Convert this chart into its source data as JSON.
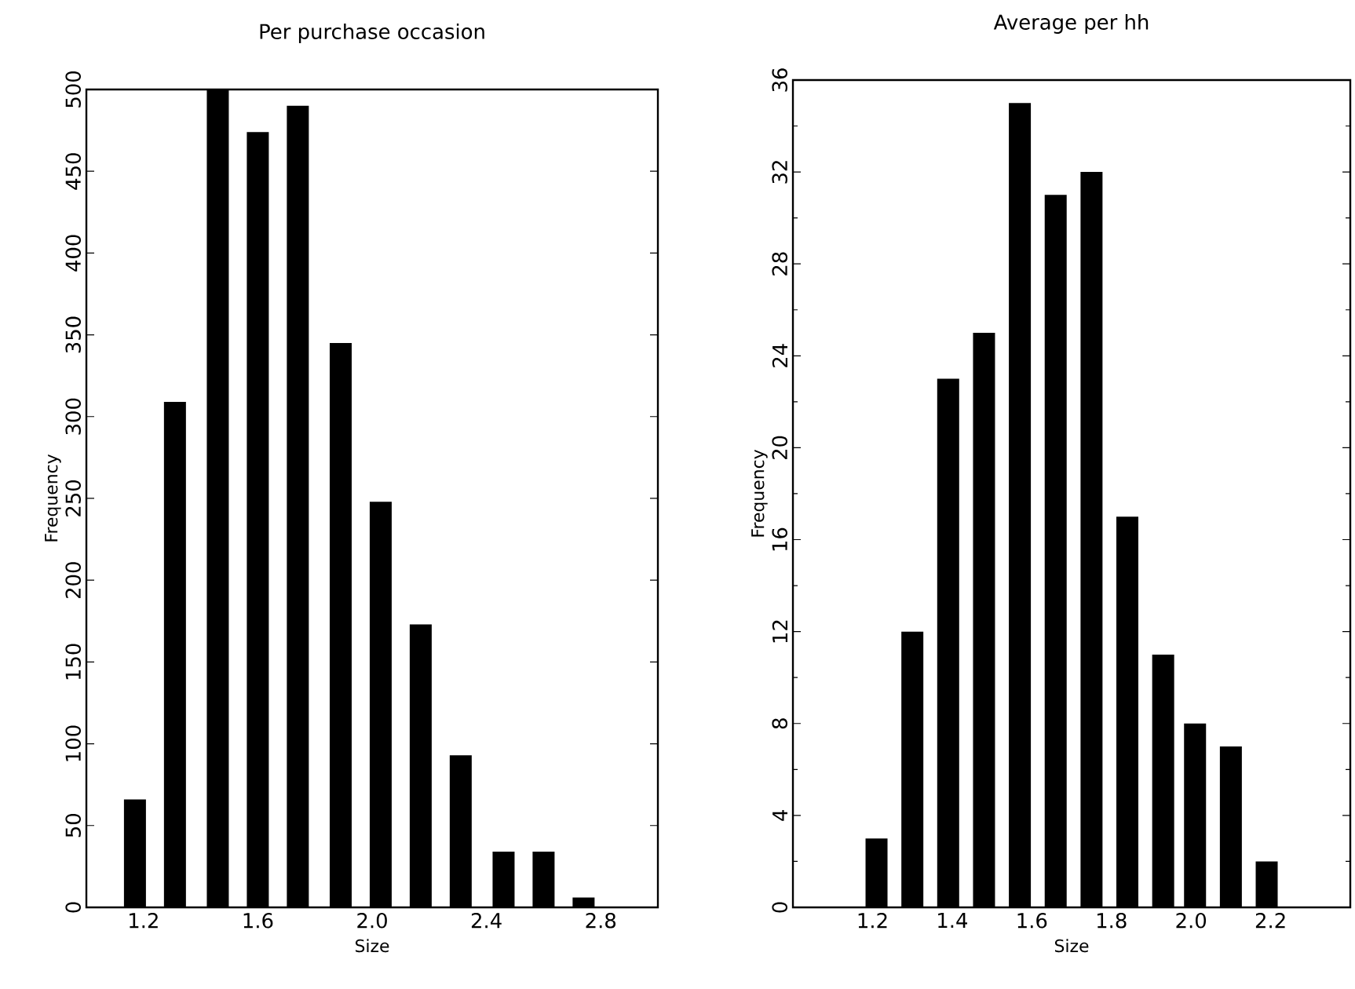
{
  "chart_data": [
    {
      "type": "bar",
      "title": "Per purchase occasion",
      "xlabel": "Size",
      "ylabel": "Frequency",
      "color": "#000000",
      "x": [
        1.17,
        1.31,
        1.46,
        1.6,
        1.74,
        1.89,
        2.03,
        2.17,
        2.31,
        2.46,
        2.6,
        2.74
      ],
      "values": [
        66,
        309,
        500,
        474,
        490,
        345,
        248,
        173,
        93,
        34,
        34,
        6
      ],
      "xlim": [
        1.0,
        3.0
      ],
      "xticks": [
        {
          "value": 1.2,
          "label": "1.2"
        },
        {
          "value": 1.6,
          "label": "1.6"
        },
        {
          "value": 2.0,
          "label": "2.0"
        },
        {
          "value": 2.4,
          "label": "2.4"
        },
        {
          "value": 2.8,
          "label": "2.8"
        }
      ],
      "ylim": [
        0,
        500
      ],
      "yticks": [
        0,
        50,
        100,
        150,
        200,
        250,
        300,
        350,
        400,
        450,
        500
      ],
      "grid": false
    },
    {
      "type": "bar",
      "title": "Average per hh",
      "xlabel": "Size",
      "ylabel": "Frequency",
      "color": "#000000",
      "x": [
        1.21,
        1.3,
        1.39,
        1.48,
        1.57,
        1.66,
        1.75,
        1.84,
        1.93,
        2.01,
        2.1,
        2.19
      ],
      "values": [
        3,
        12,
        23,
        25,
        35,
        31,
        32,
        17,
        11,
        8,
        7,
        2
      ],
      "xlim": [
        1.0,
        2.4
      ],
      "xticks": [
        {
          "value": 1.2,
          "label": "1.2"
        },
        {
          "value": 1.4,
          "label": "1.4"
        },
        {
          "value": 1.6,
          "label": "1.6"
        },
        {
          "value": 1.8,
          "label": "1.8"
        },
        {
          "value": 2.0,
          "label": "2.0"
        },
        {
          "value": 2.2,
          "label": "2.2"
        }
      ],
      "ylim": [
        0,
        36
      ],
      "yticks": [
        0,
        {
          "value": 2,
          "label": null
        },
        4,
        {
          "value": 6,
          "label": null
        },
        8,
        {
          "value": 10,
          "label": null
        },
        12,
        {
          "value": 14,
          "label": null
        },
        16,
        {
          "value": 18,
          "label": null
        },
        20,
        {
          "value": 22,
          "label": null
        },
        24,
        {
          "value": 26,
          "label": null
        },
        28,
        {
          "value": 30,
          "label": null
        },
        32,
        {
          "value": 34,
          "label": null
        },
        36
      ],
      "grid": false
    }
  ]
}
